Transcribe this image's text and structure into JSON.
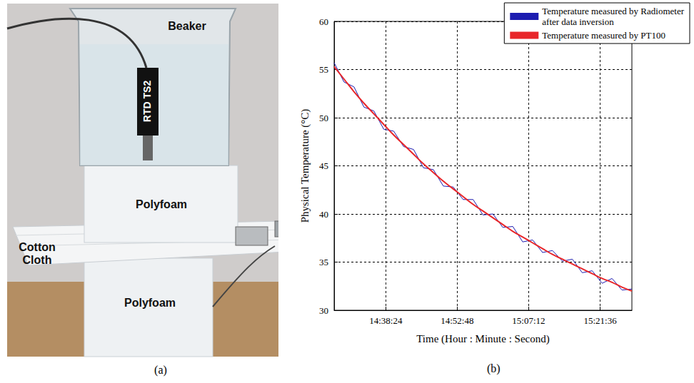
{
  "panel_a": {
    "caption": "(a)",
    "labels": {
      "beaker": "Beaker",
      "sensor": "RTD TS2",
      "upper_block": "Polyfoam",
      "cloth": "Cotton Cloth",
      "lower_block": "Polyfoam"
    }
  },
  "chart_data": {
    "type": "line",
    "caption": "(b)",
    "x_label": "Time (Hour : Minute : Second)",
    "y_label": "Physical Temperature (°C)",
    "x": [
      "14:28:00",
      "14:30:00",
      "14:32:00",
      "14:34:00",
      "14:36:00",
      "14:38:00",
      "14:40:00",
      "14:42:00",
      "14:44:00",
      "14:46:00",
      "14:48:00",
      "14:50:00",
      "14:52:00",
      "14:54:00",
      "14:56:00",
      "14:58:00",
      "15:00:00",
      "15:02:00",
      "15:04:00",
      "15:06:00",
      "15:08:00",
      "15:10:00",
      "15:12:00",
      "15:14:00",
      "15:16:00",
      "15:18:00",
      "15:20:00",
      "15:22:00",
      "15:24:00",
      "15:26:00",
      "15:28:00"
    ],
    "xlim": [
      "14:28:00",
      "15:28:00"
    ],
    "xticks": [
      "14:38:24",
      "14:52:48",
      "15:07:12",
      "15:21:36"
    ],
    "ylim": [
      30,
      60
    ],
    "yticks": [
      30,
      35,
      40,
      45,
      50,
      55,
      60
    ],
    "grid": true,
    "legend": "upper right",
    "series": [
      {
        "name": "Temperature measured by Radiometer after data inversion",
        "color": "#1c1cb0",
        "values": [
          55.7,
          53.7,
          53.2,
          51.1,
          50.7,
          48.8,
          48.6,
          47.0,
          46.7,
          44.8,
          44.6,
          42.9,
          42.8,
          41.5,
          41.5,
          39.9,
          40.0,
          38.6,
          38.7,
          37.1,
          37.3,
          36.0,
          36.2,
          35.1,
          35.3,
          33.9,
          34.1,
          32.8,
          33.3,
          32.1,
          32.2
        ]
      },
      {
        "name": "Temperature measured by PT100",
        "color": "#e8262a",
        "values": [
          55.3,
          54.0,
          52.7,
          51.5,
          50.4,
          49.3,
          48.2,
          47.2,
          46.2,
          45.2,
          44.3,
          43.4,
          42.6,
          41.8,
          41.0,
          40.3,
          39.6,
          38.9,
          38.2,
          37.6,
          37.0,
          36.4,
          35.8,
          35.3,
          34.8,
          34.3,
          33.8,
          33.3,
          32.9,
          32.4,
          32.0
        ]
      }
    ]
  }
}
